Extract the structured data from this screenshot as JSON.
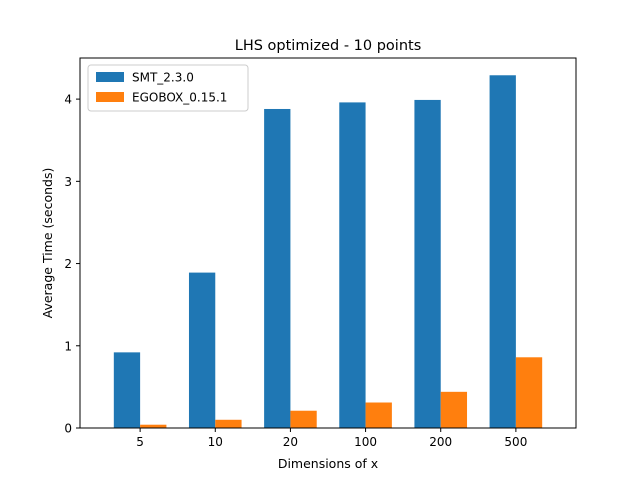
{
  "chart_data": {
    "type": "bar",
    "title": "LHS optimized - 10 points",
    "xlabel": "Dimensions of x",
    "ylabel": "Average Time (seconds)",
    "categories": [
      "5",
      "10",
      "20",
      "100",
      "200",
      "500"
    ],
    "series": [
      {
        "name": "SMT_2.3.0",
        "color": "#1f77b4",
        "values": [
          0.92,
          1.89,
          3.88,
          3.96,
          3.99,
          4.29
        ]
      },
      {
        "name": "EGOBOX_0.15.1",
        "color": "#ff7f0e",
        "values": [
          0.04,
          0.1,
          0.21,
          0.31,
          0.44,
          0.86
        ]
      }
    ],
    "ylim": [
      0,
      4.5
    ],
    "yticks": [
      0,
      1,
      2,
      3,
      4
    ],
    "grid": false,
    "legend": "top-left"
  }
}
